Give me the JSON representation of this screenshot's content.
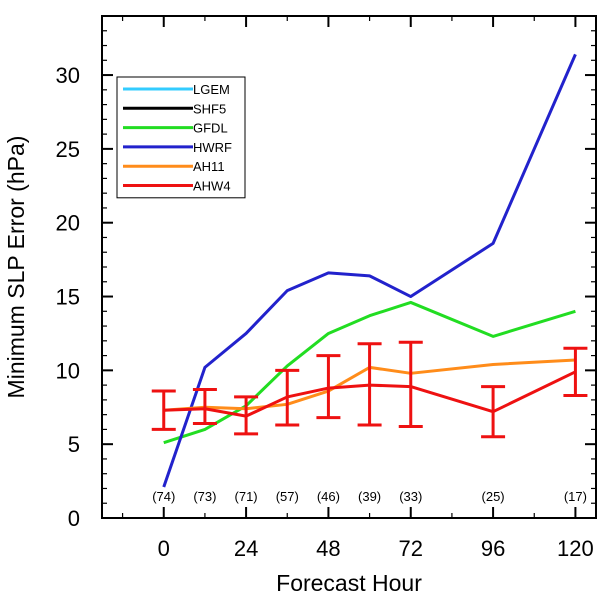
{
  "chart_data": {
    "type": "line",
    "title": "",
    "xlabel": "Forecast Hour",
    "ylabel": "Minimum SLP Error (hPa)",
    "xlim": [
      -18,
      126
    ],
    "ylim": [
      0,
      34
    ],
    "xticks": [
      0,
      24,
      48,
      72,
      96,
      120
    ],
    "yticks": [
      0,
      5,
      10,
      15,
      20,
      25,
      30
    ],
    "grid": false,
    "legend_position": "top-left",
    "series": [
      {
        "name": "LGEM",
        "color": "#33ccff",
        "x": [],
        "y": []
      },
      {
        "name": "SHF5",
        "color": "#000000",
        "x": [],
        "y": []
      },
      {
        "name": "GFDL",
        "color": "#22dd22",
        "x": [
          0,
          12,
          24,
          36,
          48,
          60,
          72,
          96,
          120
        ],
        "y": [
          5.1,
          6.0,
          7.6,
          10.3,
          12.5,
          13.7,
          14.6,
          12.3,
          14.0
        ]
      },
      {
        "name": "HWRF",
        "color": "#2222cc",
        "x": [
          0,
          12,
          24,
          36,
          48,
          60,
          72,
          96,
          120
        ],
        "y": [
          2.1,
          10.2,
          12.5,
          15.4,
          16.6,
          16.4,
          15.0,
          18.6,
          31.4
        ]
      },
      {
        "name": "AH11",
        "color": "#ff8c1a",
        "x": [
          0,
          12,
          24,
          36,
          48,
          60,
          72,
          96,
          120
        ],
        "y": [
          7.3,
          7.5,
          7.4,
          7.7,
          8.6,
          10.2,
          9.8,
          10.4,
          10.7
        ]
      },
      {
        "name": "AHW4",
        "color": "#ee1111",
        "x": [
          0,
          12,
          24,
          36,
          48,
          60,
          72,
          96,
          120
        ],
        "y": [
          7.3,
          7.4,
          6.9,
          8.2,
          8.8,
          9.0,
          8.9,
          7.2,
          9.9
        ]
      }
    ],
    "error_bars": {
      "series": "AHW4",
      "x": [
        0,
        12,
        24,
        36,
        48,
        60,
        72,
        96,
        120
      ],
      "low": [
        6.0,
        6.4,
        5.7,
        6.3,
        6.8,
        6.3,
        6.2,
        5.5,
        8.3
      ],
      "high": [
        8.6,
        8.7,
        8.2,
        10.0,
        11.0,
        11.8,
        11.9,
        8.9,
        11.5
      ]
    },
    "sample_counts": {
      "x": [
        0,
        12,
        24,
        36,
        48,
        60,
        72,
        96,
        120
      ],
      "labels": [
        "(74)",
        "(73)",
        "(71)",
        "(57)",
        "(46)",
        "(39)",
        "(33)",
        "(25)",
        "(17)"
      ]
    }
  }
}
